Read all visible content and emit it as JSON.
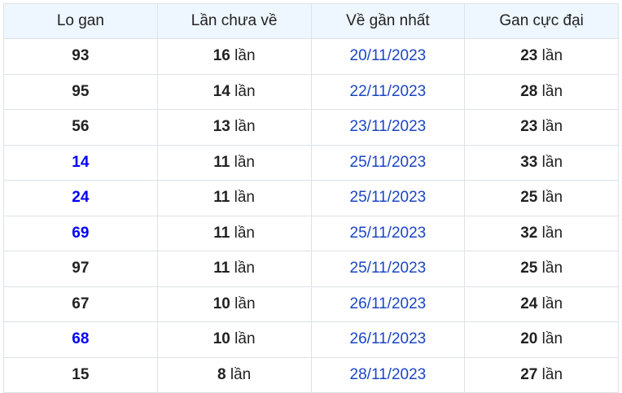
{
  "headers": [
    "Lo gan",
    "Lần chưa về",
    "Về gần nhất",
    "Gan cực đại"
  ],
  "unit": "lần",
  "rows": [
    {
      "lo": "93",
      "highlight": false,
      "chua_ve": "16",
      "gan_nhat": "20/11/2023",
      "cuc_dai": "23"
    },
    {
      "lo": "95",
      "highlight": false,
      "chua_ve": "14",
      "gan_nhat": "22/11/2023",
      "cuc_dai": "28"
    },
    {
      "lo": "56",
      "highlight": false,
      "chua_ve": "13",
      "gan_nhat": "23/11/2023",
      "cuc_dai": "23"
    },
    {
      "lo": "14",
      "highlight": true,
      "chua_ve": "11",
      "gan_nhat": "25/11/2023",
      "cuc_dai": "33"
    },
    {
      "lo": "24",
      "highlight": true,
      "chua_ve": "11",
      "gan_nhat": "25/11/2023",
      "cuc_dai": "25"
    },
    {
      "lo": "69",
      "highlight": true,
      "chua_ve": "11",
      "gan_nhat": "25/11/2023",
      "cuc_dai": "32"
    },
    {
      "lo": "97",
      "highlight": false,
      "chua_ve": "11",
      "gan_nhat": "25/11/2023",
      "cuc_dai": "25"
    },
    {
      "lo": "67",
      "highlight": false,
      "chua_ve": "10",
      "gan_nhat": "26/11/2023",
      "cuc_dai": "24"
    },
    {
      "lo": "68",
      "highlight": true,
      "chua_ve": "10",
      "gan_nhat": "26/11/2023",
      "cuc_dai": "20"
    },
    {
      "lo": "15",
      "highlight": false,
      "chua_ve": "8",
      "gan_nhat": "28/11/2023",
      "cuc_dai": "27"
    }
  ],
  "colors": {
    "highlight": "#0000ff",
    "date": "#1a46c4",
    "header_bg": "#eef6ff"
  }
}
